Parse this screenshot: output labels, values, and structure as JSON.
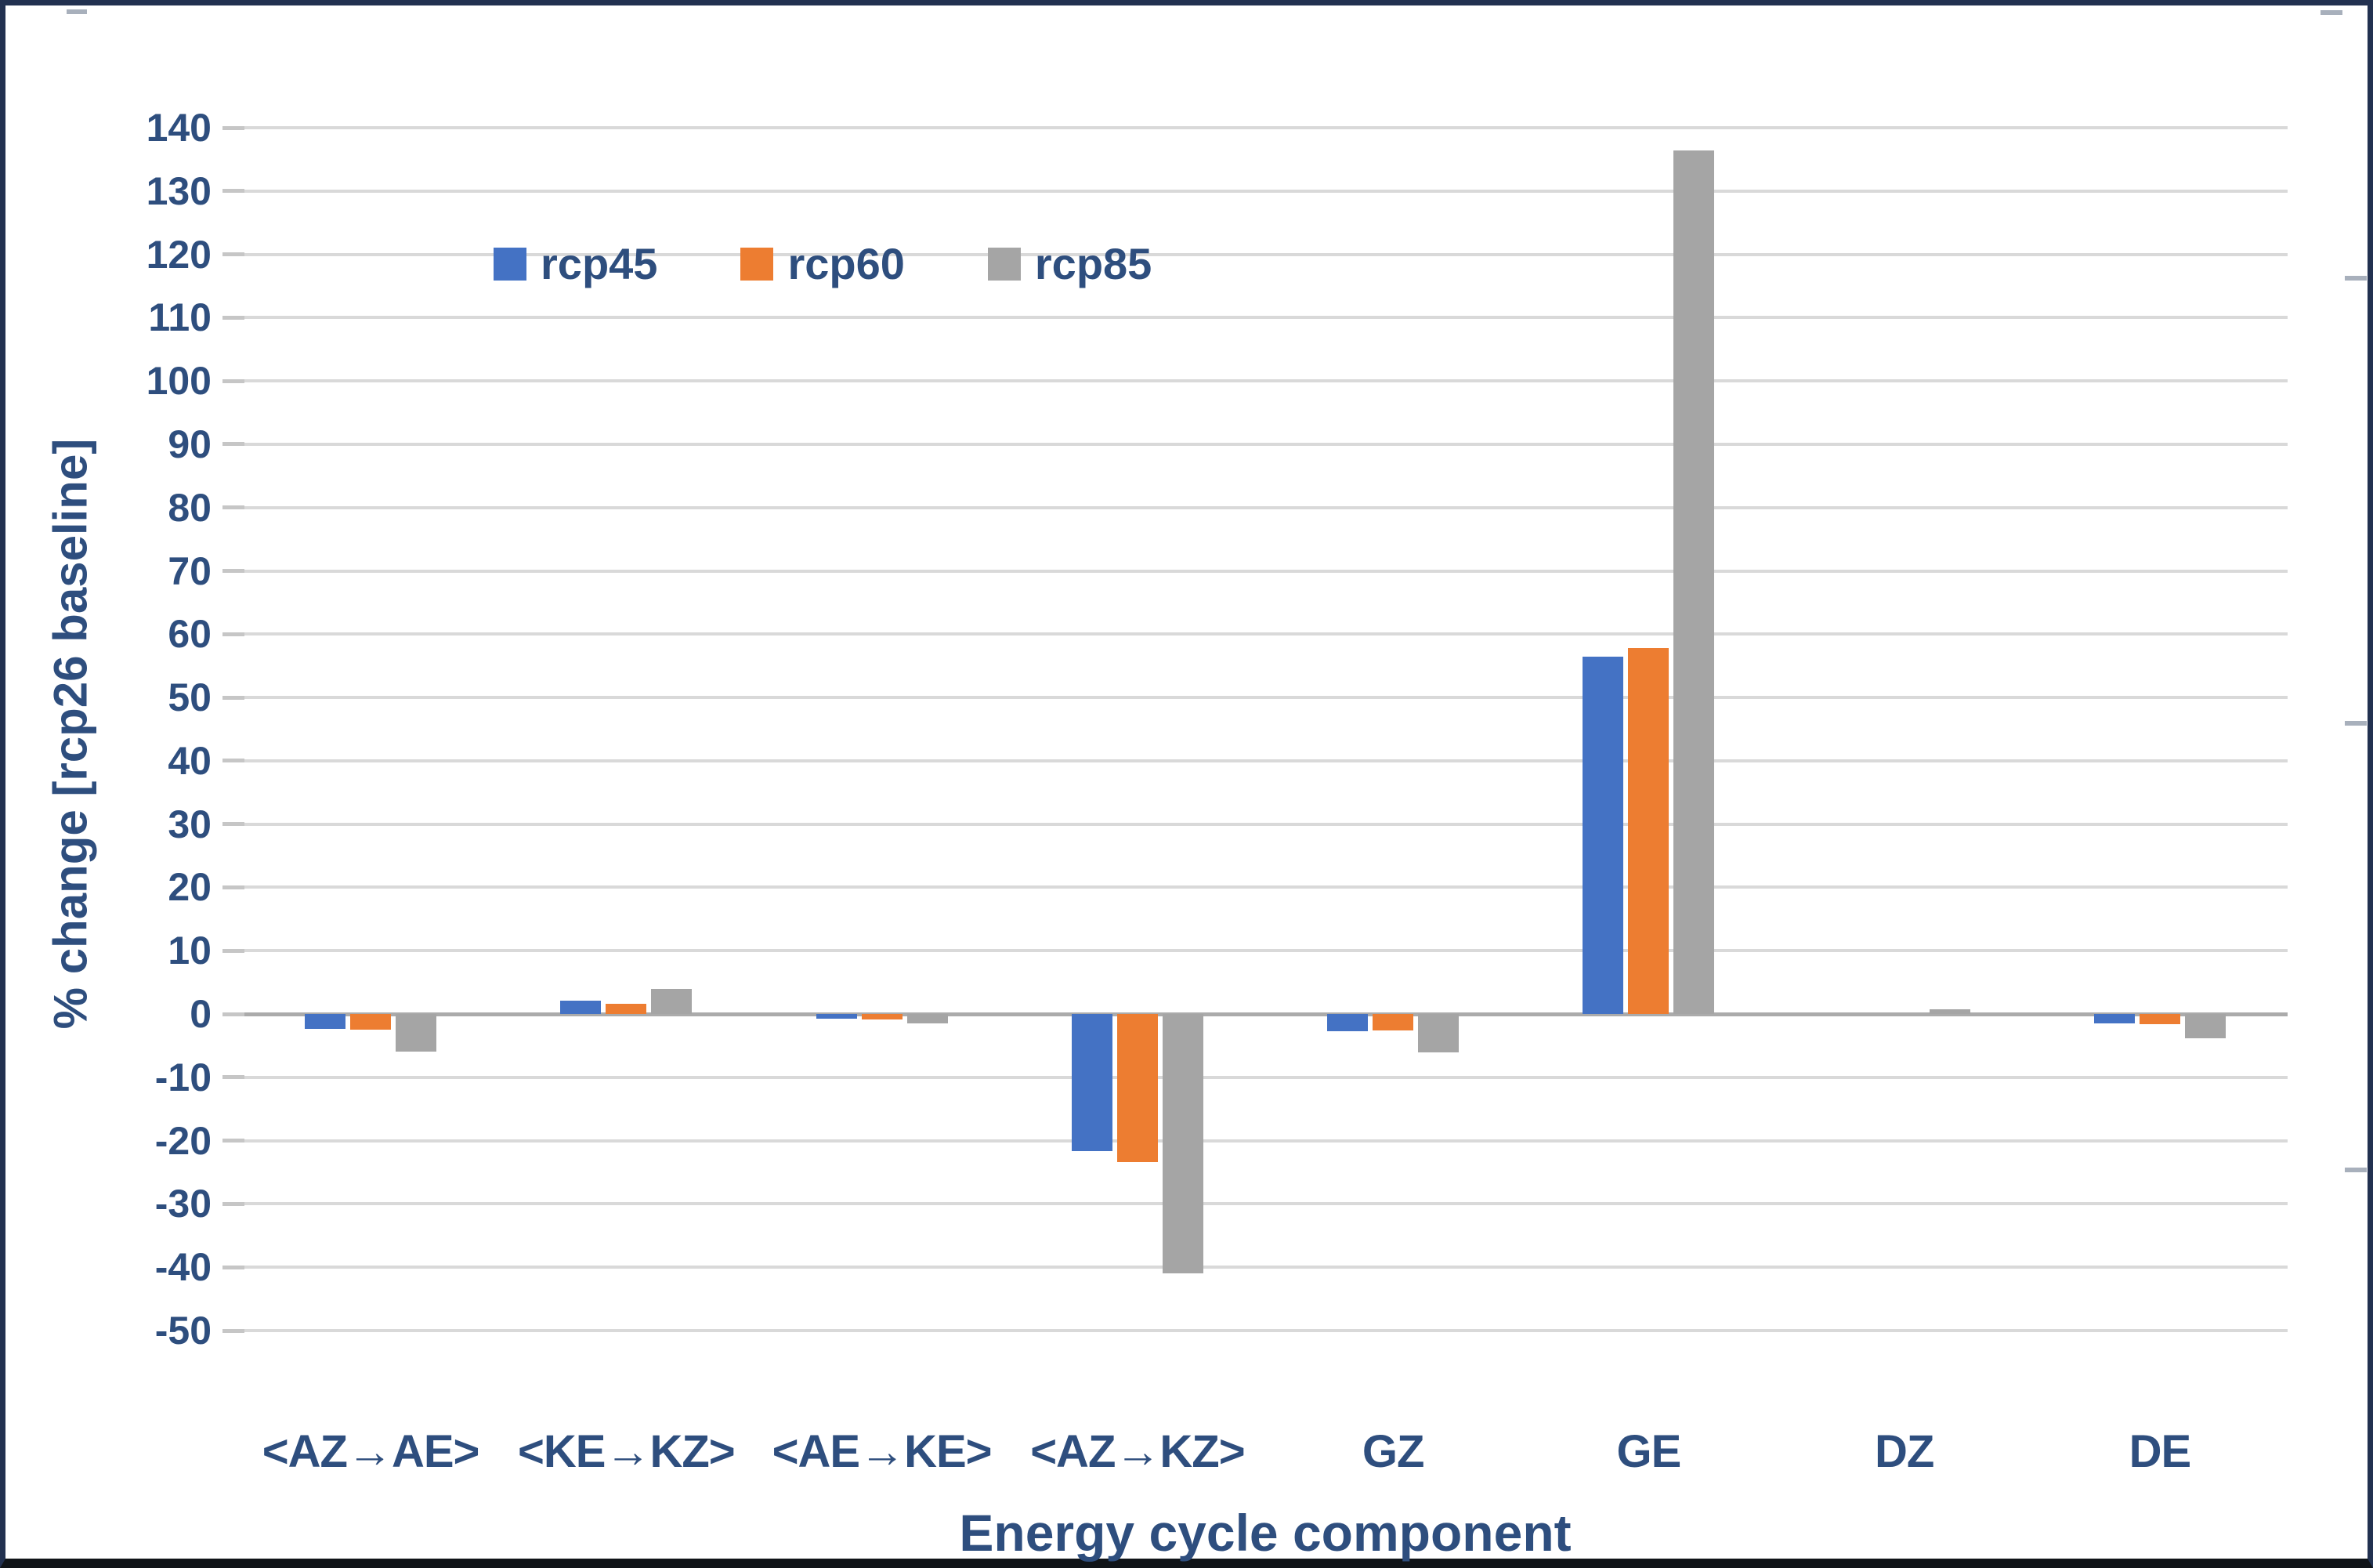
{
  "chart_data": {
    "type": "bar",
    "title": "",
    "categories": [
      "<AZ→AE>",
      "<KE→KZ>",
      "<AE→KE>",
      "<AZ→KZ>",
      "GZ",
      "GE",
      "DZ",
      "DE"
    ],
    "series": [
      {
        "name": "rcp45",
        "color": "#4472C4",
        "values": [
          -2.3,
          2.1,
          -0.7,
          -21.6,
          -2.7,
          56.5,
          0,
          -1.5
        ]
      },
      {
        "name": "rcp60",
        "color": "#ED7D31",
        "values": [
          -2.5,
          1.6,
          -0.8,
          -23.4,
          -2.6,
          57.8,
          0,
          -1.6
        ]
      },
      {
        "name": "rcp85",
        "color": "#A5A5A5",
        "values": [
          -5.9,
          4.0,
          -1.5,
          -41.0,
          -6.1,
          136.4,
          0.8,
          -3.8
        ]
      }
    ],
    "xlabel": "Energy cycle component",
    "ylabel": "% change [rcp26 baseline]",
    "ylim": [
      -50,
      140
    ],
    "ytick_step": 10,
    "yticks": [
      140,
      130,
      120,
      110,
      100,
      90,
      80,
      70,
      60,
      50,
      40,
      30,
      20,
      10,
      0,
      -10,
      -20,
      -30,
      -40,
      -50
    ],
    "grid": true,
    "legend_position": "top-left-inside",
    "legend_labels": [
      "rcp45",
      "rcp60",
      "rcp85"
    ]
  },
  "styles": {
    "text_color": "#2E4E7E",
    "grid_color": "#D9D9D9",
    "zero_line_color": "#ABABAB",
    "series_colors": {
      "rcp45": "#4472C4",
      "rcp60": "#ED7D31",
      "rcp85": "#A5A5A5"
    },
    "frame_color": "#223150",
    "background": "#FFFFFF"
  }
}
